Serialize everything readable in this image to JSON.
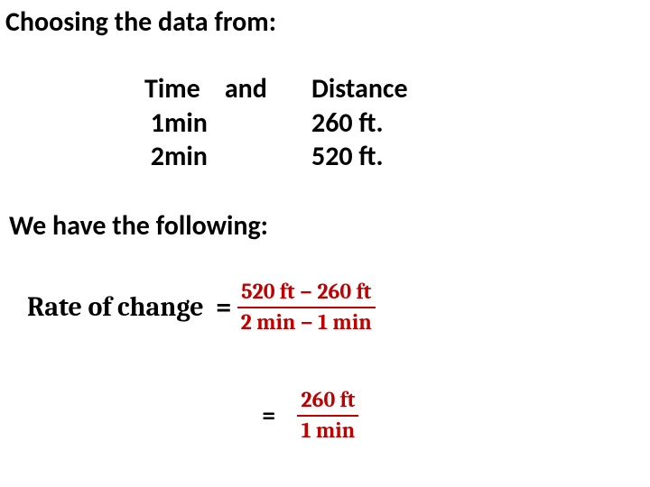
{
  "headings": {
    "choosing": "Choosing the data from:",
    "wehave": "We have the following:"
  },
  "table": {
    "header_time": "Time",
    "header_and": "and",
    "header_distance": "Distance",
    "rows": [
      {
        "time": "1min",
        "distance": "260 ft."
      },
      {
        "time": "2min",
        "distance": "520 ft."
      }
    ]
  },
  "formula": {
    "lhs_label": "Rate of change",
    "equals": "=",
    "frac1": {
      "numerator": "520 ft − 260 ft",
      "denominator": "2 min − 1 min"
    },
    "frac2": {
      "numerator": "260 ft",
      "denominator": "1 min"
    }
  },
  "style": {
    "text_color": "#000000",
    "accent_color": "#c00000",
    "background": "#ffffff",
    "heading_fontsize": 30,
    "formula_fontsize": 30,
    "fraction_fontsize": 24
  }
}
